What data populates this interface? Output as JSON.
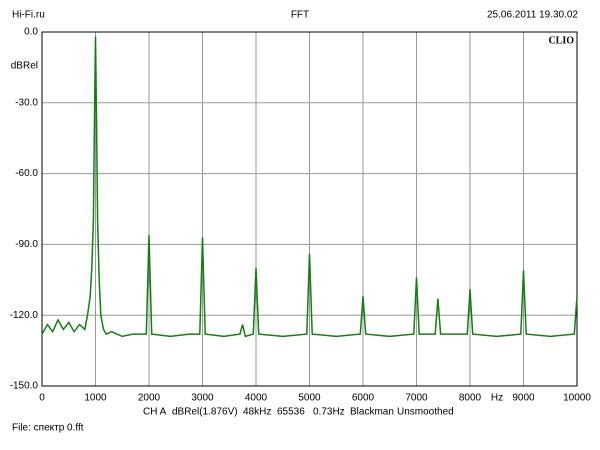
{
  "chart_data": {
    "type": "line",
    "title": "FFT",
    "source": "Hi-Fi.ru",
    "timestamp": "25.06.2011 19.30.02",
    "brand": "CLIO",
    "ylabel": "dBRel",
    "xlabel": "Hz",
    "info": [
      "CH A",
      "dBRel(1.876V)",
      "48kHz",
      "65536",
      "0.73Hz",
      "Blackman",
      "Unsmoothed"
    ],
    "file": "File: спектр 0.fft",
    "color": "#1a7a1a",
    "grid": true,
    "xlim": [
      0,
      10000
    ],
    "xticks": [
      0,
      1000,
      2000,
      3000,
      4000,
      5000,
      6000,
      7000,
      8000,
      9000,
      10000
    ],
    "ylim": [
      -150,
      0
    ],
    "yticks": [
      {
        "value": 0,
        "label": "0.0"
      },
      {
        "value": -30,
        "label": "-30.0"
      },
      {
        "value": -60,
        "label": "-60.0"
      },
      {
        "value": -90,
        "label": "-90.0"
      },
      {
        "value": -120,
        "label": "-120.0"
      },
      {
        "value": -150,
        "label": "-150.0"
      }
    ],
    "x": [
      0,
      100,
      200,
      300,
      400,
      500,
      600,
      700,
      800,
      850,
      900,
      930,
      960,
      980,
      1000,
      1020,
      1040,
      1070,
      1100,
      1150,
      1200,
      1300,
      1500,
      1700,
      1950,
      2000,
      2050,
      2400,
      2750,
      2950,
      3000,
      3050,
      3400,
      3700,
      3750,
      3800,
      3950,
      4000,
      4050,
      4500,
      4950,
      5000,
      5050,
      5500,
      5950,
      6000,
      6050,
      6500,
      6950,
      7000,
      7050,
      7350,
      7400,
      7450,
      7950,
      8000,
      8050,
      8500,
      8950,
      9000,
      9050,
      9500,
      9950,
      10000
    ],
    "values": [
      -128,
      -124,
      -127,
      -122,
      -126,
      -123,
      -127,
      -124,
      -126,
      -120,
      -112,
      -100,
      -80,
      -40,
      -2,
      -40,
      -80,
      -105,
      -120,
      -126,
      -128,
      -127,
      -129,
      -128,
      -128,
      -86,
      -128,
      -129,
      -128,
      -128,
      -87,
      -128,
      -129,
      -128,
      -124,
      -129,
      -128,
      -100,
      -128,
      -129,
      -128,
      -94,
      -128,
      -129,
      -128,
      -112,
      -128,
      -129,
      -128,
      -104,
      -128,
      -128,
      -113,
      -128,
      -128,
      -109,
      -128,
      -129,
      -128,
      -101,
      -128,
      -129,
      -128,
      -112
    ]
  }
}
